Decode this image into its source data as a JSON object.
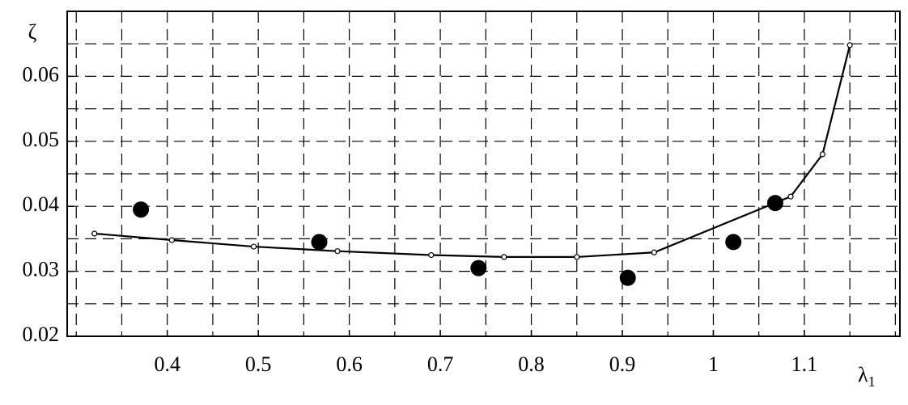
{
  "chart_data": {
    "type": "line",
    "y_label": "ζ",
    "x_label": {
      "text": "λ",
      "sub": "1"
    },
    "xlim": [
      0.29,
      1.205
    ],
    "ylim": [
      0.02,
      0.07
    ],
    "xticks": [
      0.4,
      0.5,
      0.6,
      0.7,
      0.8,
      0.9,
      1,
      1.1
    ],
    "yticks": [
      0.02,
      0.03,
      0.04,
      0.05,
      0.06
    ],
    "xgrid": [
      0.3,
      0.35,
      0.4,
      0.45,
      0.5,
      0.55,
      0.6,
      0.65,
      0.7,
      0.75,
      0.8,
      0.85,
      0.9,
      0.95,
      1,
      1.05,
      1.1,
      1.15,
      1.2
    ],
    "ygrid": [
      0.025,
      0.03,
      0.035,
      0.04,
      0.045,
      0.05,
      0.055,
      0.06,
      0.065
    ],
    "grid": true,
    "series": [
      {
        "kind": "curve",
        "color": "#000000",
        "x": [
          0.32,
          0.405,
          0.495,
          0.587,
          0.69,
          0.77,
          0.85,
          0.935,
          1.085,
          1.12,
          1.15
        ],
        "values": [
          0.0358,
          0.0348,
          0.0338,
          0.0331,
          0.0325,
          0.0322,
          0.0322,
          0.0329,
          0.0415,
          0.048,
          0.0648
        ]
      },
      {
        "kind": "points",
        "color": "#000000",
        "x": [
          0.371,
          0.567,
          0.742,
          0.906,
          1.022,
          1.068
        ],
        "values": [
          0.0395,
          0.0345,
          0.0305,
          0.029,
          0.0345,
          0.0405
        ]
      }
    ]
  }
}
